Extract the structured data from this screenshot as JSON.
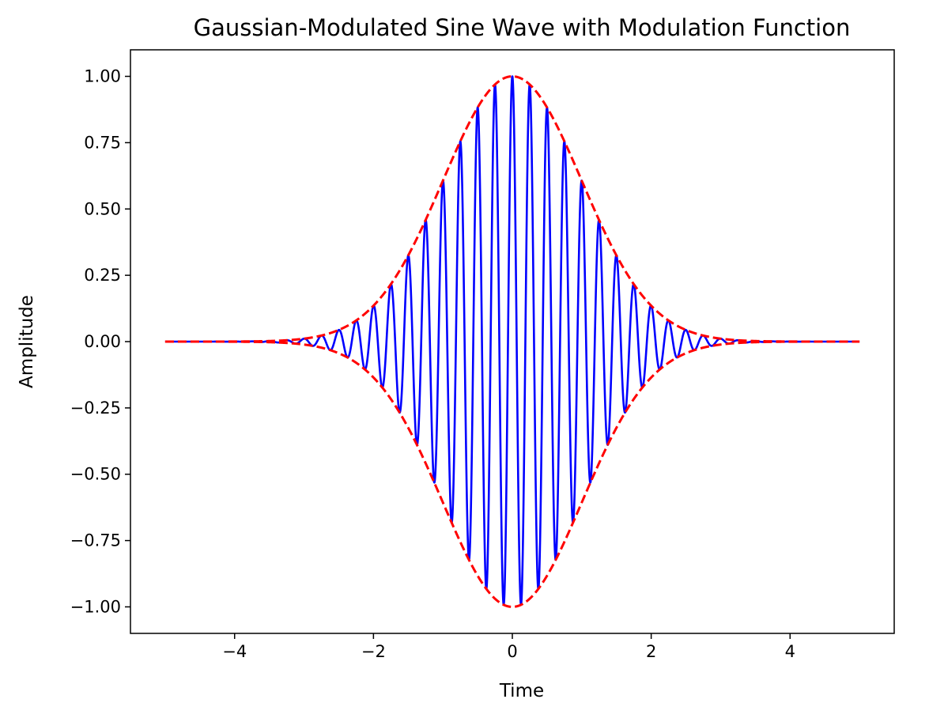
{
  "chart_data": {
    "type": "line",
    "title": "Gaussian-Modulated Sine Wave with Modulation Function",
    "xlabel": "Time",
    "ylabel": "Amplitude",
    "xlim": [
      -5.5,
      5.5
    ],
    "ylim": [
      -1.1,
      1.1
    ],
    "x_ticks": [
      -4,
      -2,
      0,
      2,
      4
    ],
    "x_tick_labels": [
      "−4",
      "−2",
      "0",
      "2",
      "4"
    ],
    "y_ticks": [
      1.0,
      0.75,
      0.5,
      0.25,
      0.0,
      -0.25,
      -0.5,
      -0.75,
      -1.0
    ],
    "y_tick_labels": [
      "1.00",
      "0.75",
      "0.50",
      "0.25",
      "0.00",
      "−0.25",
      "−0.50",
      "−0.75",
      "−1.00"
    ],
    "grid": false,
    "legend": "none",
    "x_range": [
      -5,
      5
    ],
    "series": [
      {
        "function": "exp(-x^2/2) * cos(2*pi*4*x)",
        "gaussian_sigma": 1,
        "carrier_frequency": 4,
        "color": "#0000ff",
        "style": "solid"
      },
      {
        "function": "exp(-x^2/2)",
        "gaussian_sigma": 1,
        "color": "#ff0000",
        "style": "dashed"
      },
      {
        "function": "-exp(-x^2/2)",
        "gaussian_sigma": 1,
        "color": "#ff0000",
        "style": "dashed"
      }
    ]
  }
}
